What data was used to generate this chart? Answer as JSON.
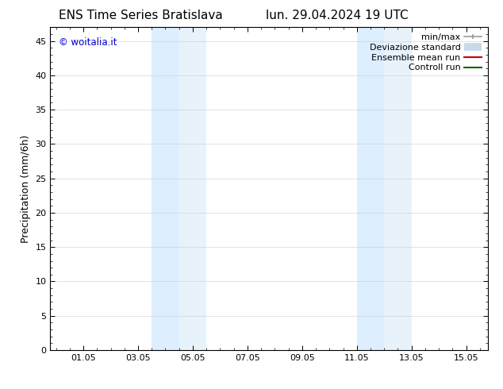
{
  "title_left": "ENS Time Series Bratislava",
  "title_right": "lun. 29.04.2024 19 UTC",
  "ylabel": "Precipitation (mm/6h)",
  "xlim": [
    -0.208,
    15.792
  ],
  "ylim": [
    0,
    47
  ],
  "yticks": [
    0,
    5,
    10,
    15,
    20,
    25,
    30,
    35,
    40,
    45
  ],
  "xtick_labels": [
    "01.05",
    "03.05",
    "05.05",
    "07.05",
    "09.05",
    "11.05",
    "13.05",
    "15.05"
  ],
  "xtick_positions": [
    1.0,
    3.0,
    5.0,
    7.0,
    9.0,
    11.0,
    13.0,
    15.0
  ],
  "shaded_bands": [
    {
      "x_start": 3.5,
      "x_end": 4.5,
      "color": "#ddeeff"
    },
    {
      "x_start": 4.5,
      "x_end": 5.5,
      "color": "#e8f2fb"
    },
    {
      "x_start": 11.0,
      "x_end": 12.0,
      "color": "#ddeeff"
    },
    {
      "x_start": 12.0,
      "x_end": 13.0,
      "color": "#e8f2fb"
    }
  ],
  "watermark_text": "© woitalia.it",
  "watermark_color": "#0000cc",
  "bg_color": "#ffffff",
  "title_fontsize": 11,
  "label_fontsize": 9,
  "tick_fontsize": 8,
  "legend_fontsize": 8
}
